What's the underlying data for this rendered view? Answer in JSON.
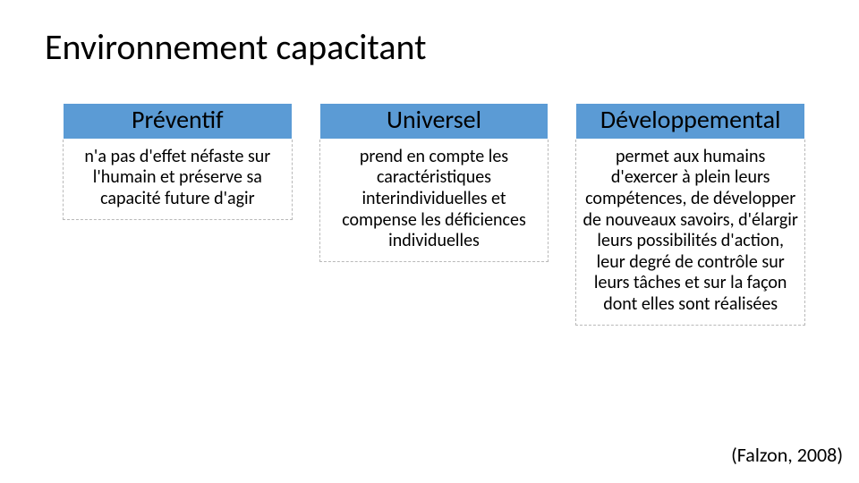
{
  "title": "Environnement capacitant",
  "columns": [
    {
      "header": "Préventif",
      "body": "n'a pas d'effet néfaste sur l'humain et préserve sa capacité future d'agir"
    },
    {
      "header": "Universel",
      "body": "prend en compte les caractéristiques interindividuelles et compense les déficiences individuelles"
    },
    {
      "header": "Développemental",
      "body": "permet aux humains d'exercer à plein leurs compétences, de développer de nouveaux savoirs, d'élargir leurs possibilités d'action, leur degré de contrôle sur leurs tâches et sur la façon dont elles sont réalisées"
    }
  ],
  "citation": "(Falzon, 2008)",
  "style": {
    "header_bg": "#5b9bd5",
    "header_text_color": "#000000",
    "body_bg": "#ffffff",
    "body_text_color": "#000000",
    "body_border_color": "#b9b9b9",
    "title_fontsize": 40,
    "header_fontsize": 28,
    "body_fontsize": 20,
    "citation_fontsize": 22,
    "slide_bg": "#ffffff",
    "column_gap": 30
  }
}
